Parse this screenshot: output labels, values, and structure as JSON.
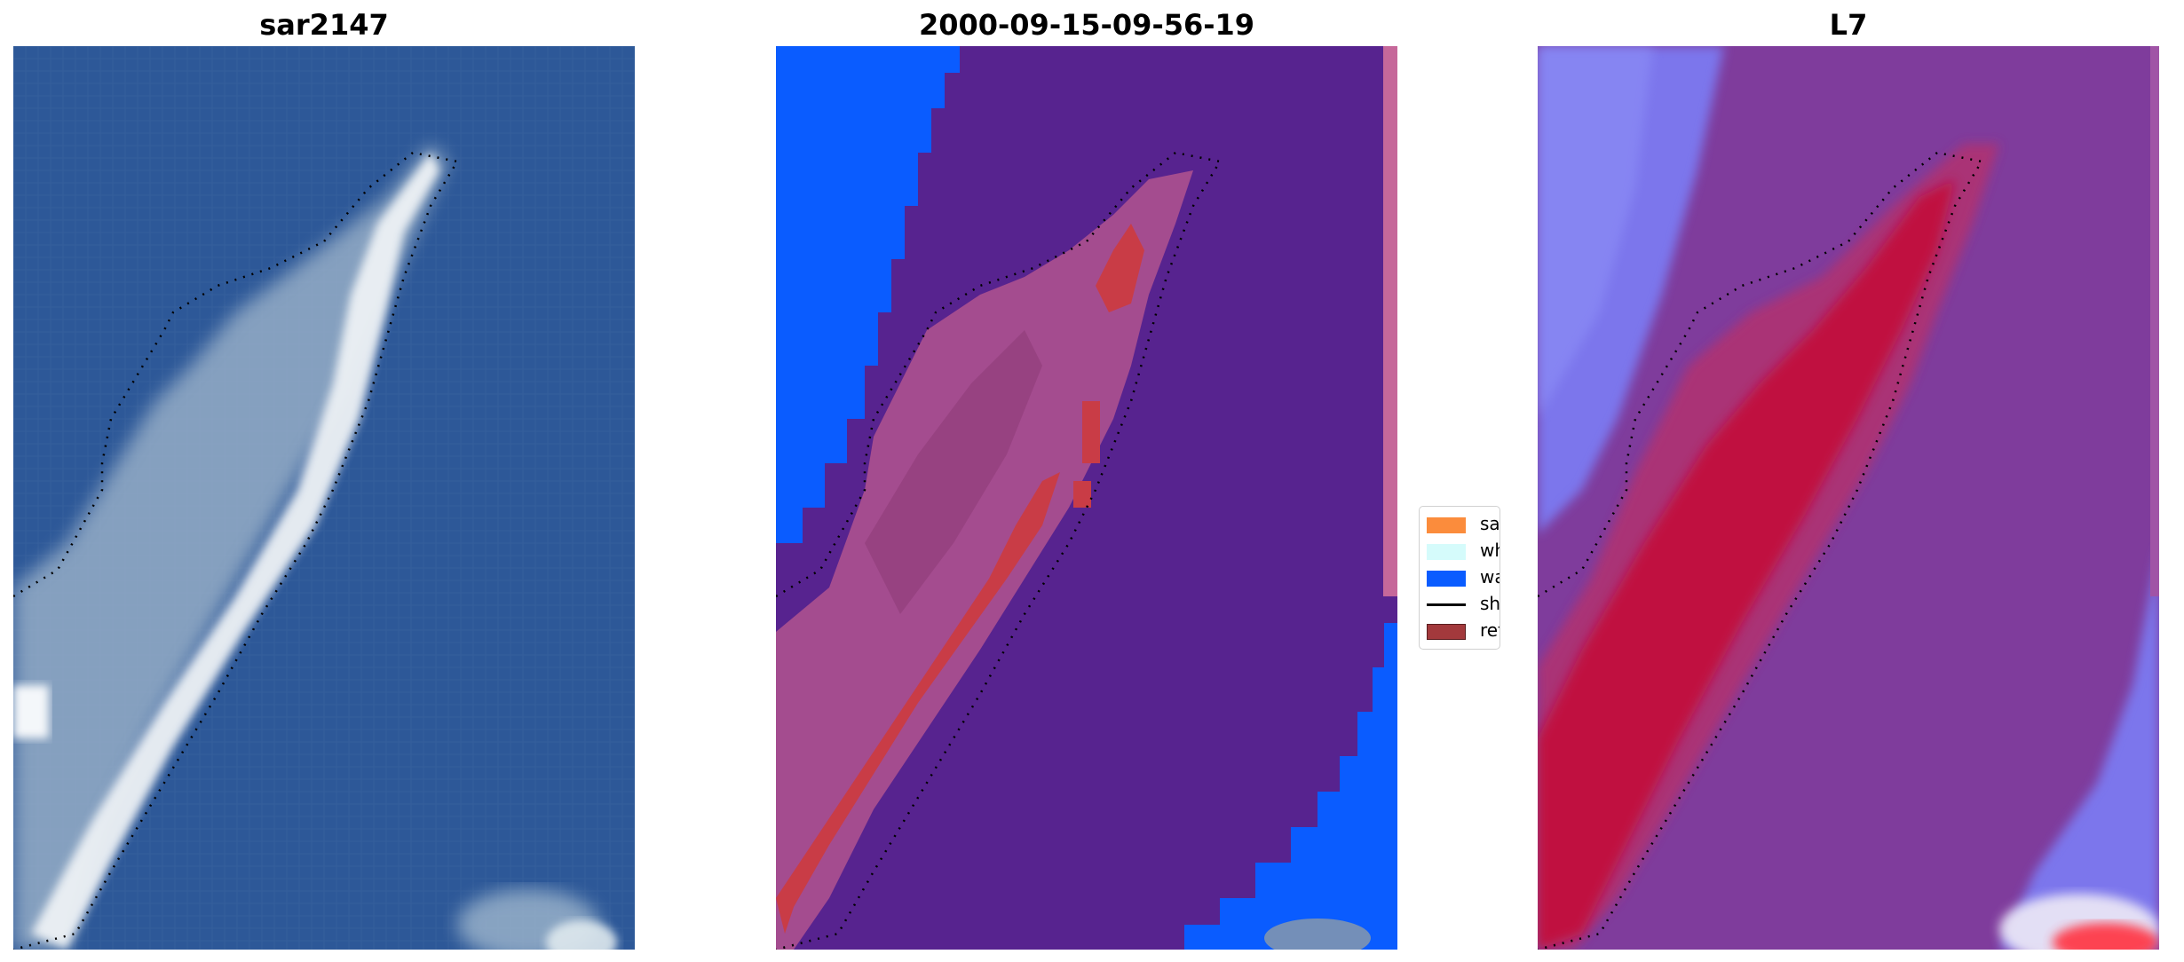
{
  "panels": [
    {
      "title": "sar2147"
    },
    {
      "title": "2000-09-15-09-56-19"
    },
    {
      "title": "L7"
    }
  ],
  "legend": {
    "items": [
      {
        "label": "sand",
        "color": "#fb8c3c",
        "kind": "patch"
      },
      {
        "label": "whitewater",
        "color": "#d5fbfb",
        "kind": "patch"
      },
      {
        "label": "water",
        "color": "#0a5cff",
        "kind": "patch"
      },
      {
        "label": "shoreline",
        "color": "#000000",
        "kind": "line"
      },
      {
        "label": "reference shoreline",
        "color": "#a3393c",
        "kind": "patch"
      }
    ]
  },
  "colors": {
    "rgb_water": "#2c5697",
    "rgb_sand": "#e2ecf0",
    "class_water": "#0a5cff",
    "class_other": "#57238f",
    "class_sand_overlay": "#b04a88",
    "class_reference": "#c93c46",
    "index_low": "#7f3c9c",
    "index_high": "#c3083a",
    "index_water": "#7b7df5"
  }
}
